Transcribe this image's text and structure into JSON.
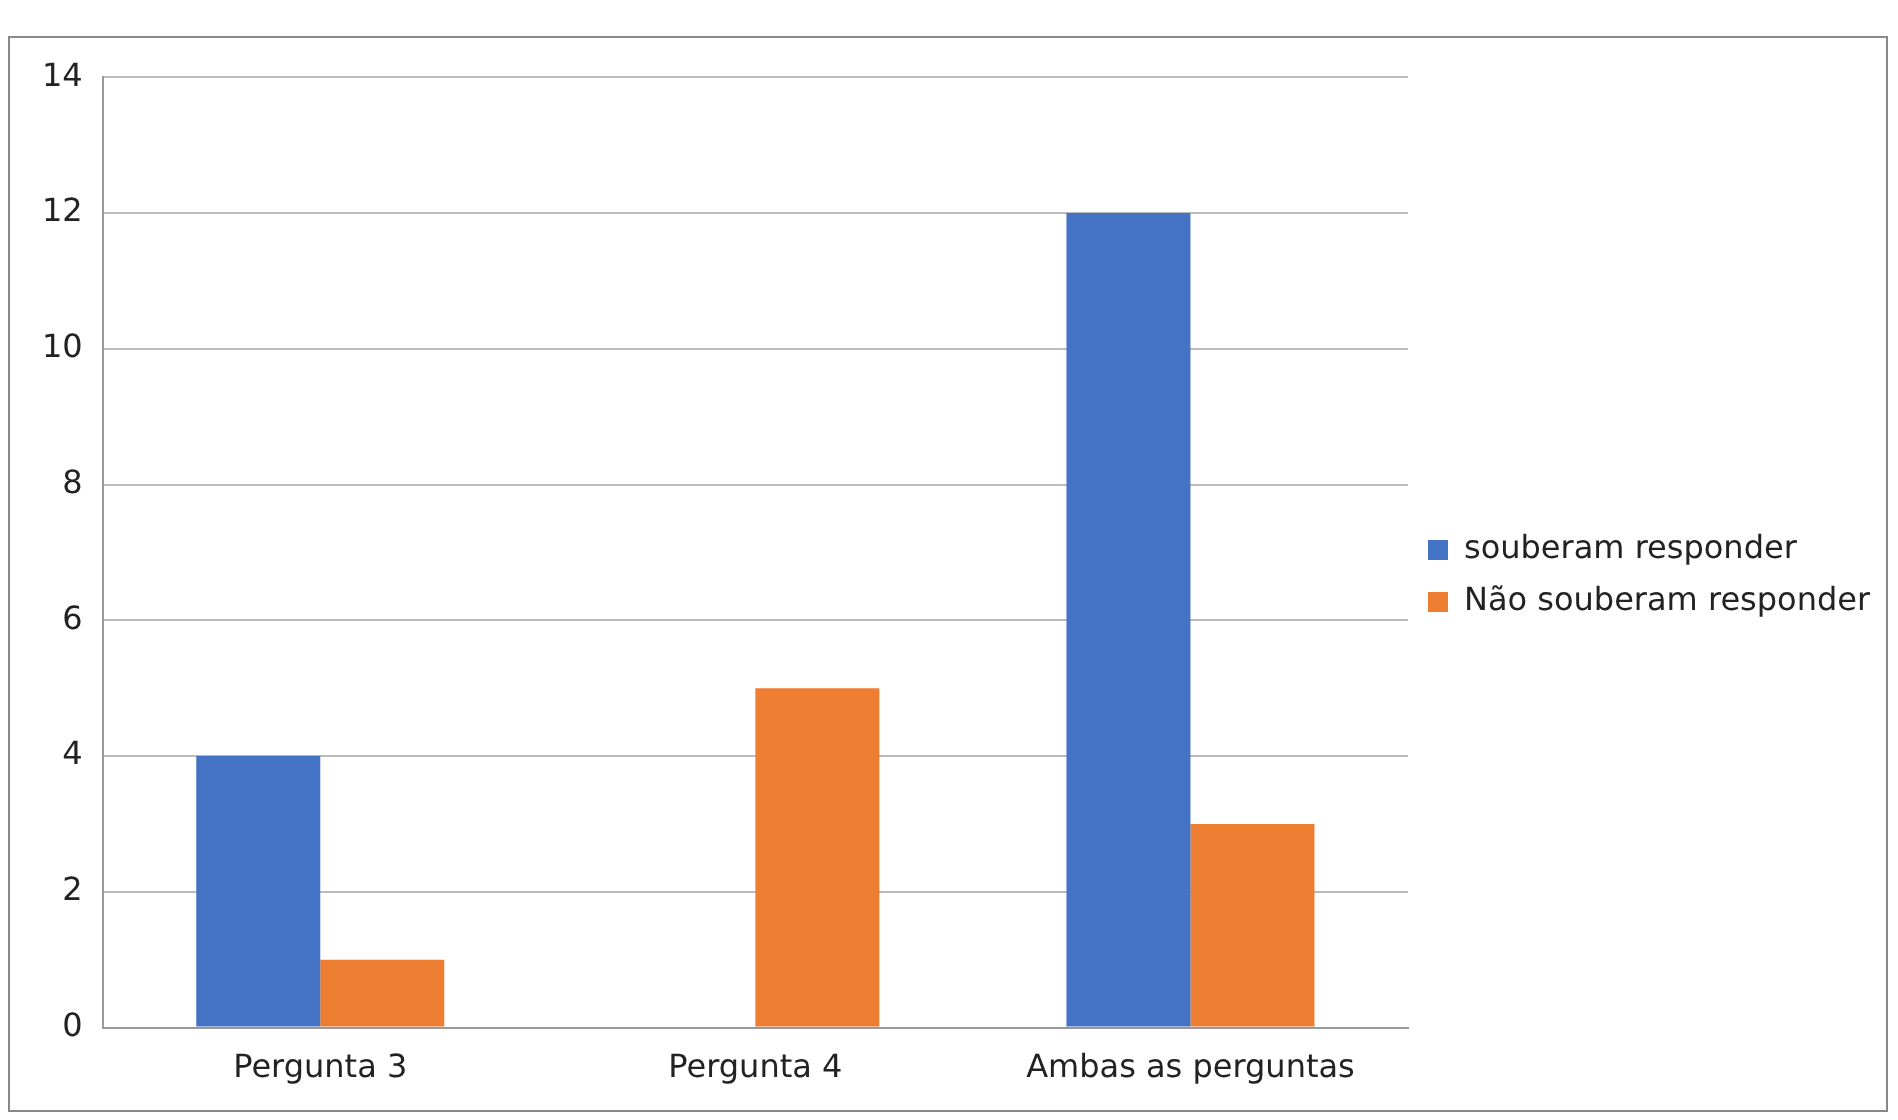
{
  "chart_data": {
    "type": "bar",
    "categories": [
      "Pergunta 3",
      "Pergunta 4",
      "Ambas as perguntas"
    ],
    "series": [
      {
        "name": "souberam responder",
        "color": "#4472c4",
        "values": [
          4,
          0,
          12
        ]
      },
      {
        "name": "Não souberam responder",
        "color": "#ed7d31",
        "values": [
          1,
          5,
          3
        ]
      }
    ],
    "ylim": [
      0,
      14
    ],
    "yticks": [
      0,
      2,
      4,
      6,
      8,
      10,
      12,
      14
    ],
    "grid": "y",
    "legend": "right"
  }
}
